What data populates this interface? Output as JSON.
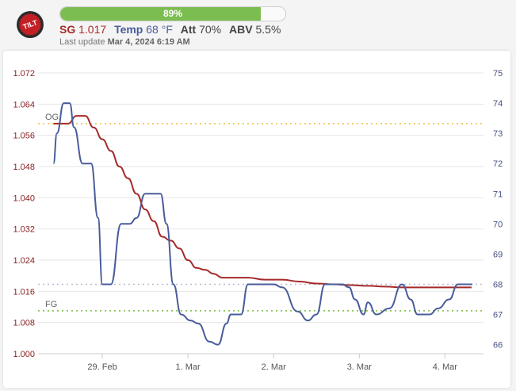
{
  "header": {
    "logo_icon": "tilt-hydrometer-logo-icon",
    "logo_text": "TILT",
    "battery": {
      "label": "89%",
      "fraction": 0.89,
      "color": "#7cbd52"
    },
    "stats": {
      "sg": {
        "label": "SG",
        "value": "1.017"
      },
      "temp": {
        "label": "Temp",
        "value": "68 °F"
      },
      "att": {
        "label": "Att",
        "value": "70%"
      },
      "abv": {
        "label": "ABV",
        "value": "5.5%"
      }
    },
    "last_update": {
      "prefix": "Last update",
      "value": "Mar 4, 2024 6:19 AM"
    }
  },
  "colors": {
    "sg": "#a52a2a",
    "temp": "#4a5c9b",
    "og_line": "#f0c040",
    "fg_line": "#7bbd3f",
    "temp_ref_line": "#b9bccd"
  },
  "chart_data": {
    "type": "line",
    "x_ticks": [
      {
        "label": "29. Feb",
        "day": 1.5
      },
      {
        "label": "1. Mar",
        "day": 2.5
      },
      {
        "label": "2. Mar",
        "day": 3.5
      },
      {
        "label": "3. Mar",
        "day": 4.5
      },
      {
        "label": "4. Mar",
        "day": 5.5
      }
    ],
    "y_left": {
      "min": 1.0,
      "max": 1.072,
      "ticks": [
        "1.000",
        "1.008",
        "1.016",
        "1.024",
        "1.032",
        "1.040",
        "1.048",
        "1.056",
        "1.064",
        "1.072"
      ]
    },
    "y_right": {
      "min": 65.7,
      "max": 75,
      "ticks": [
        "66",
        "67",
        "68",
        "69",
        "70",
        "71",
        "72",
        "73",
        "74",
        "75"
      ]
    },
    "reference_lines": [
      {
        "label": "OG",
        "value": 1.059,
        "axis": "left",
        "color": "#f0c040"
      },
      {
        "label": "FG",
        "value": 1.011,
        "axis": "left",
        "color": "#7bbd3f"
      },
      {
        "label": "",
        "value": 68.0,
        "axis": "right",
        "color": "#b9bccd"
      }
    ],
    "series": [
      {
        "name": "SG",
        "axis": "left",
        "color": "#a52a2a",
        "x": [
          0.93,
          1.0,
          1.1,
          1.2,
          1.3,
          1.4,
          1.5,
          1.6,
          1.7,
          1.8,
          1.9,
          2.0,
          2.1,
          2.2,
          2.3,
          2.4,
          2.5,
          2.6,
          2.7,
          2.8,
          2.9,
          3.0,
          3.2,
          3.4,
          3.5,
          3.6,
          3.8,
          4.0,
          4.2,
          4.4,
          4.6,
          4.8,
          5.0,
          5.2,
          5.4,
          5.6,
          5.81
        ],
        "y": [
          1.059,
          1.059,
          1.059,
          1.061,
          1.061,
          1.058,
          1.055,
          1.052,
          1.048,
          1.045,
          1.041,
          1.037,
          1.034,
          1.03,
          1.029,
          1.027,
          1.024,
          1.022,
          1.0215,
          1.0205,
          1.0195,
          1.0195,
          1.0195,
          1.019,
          1.019,
          1.019,
          1.0185,
          1.018,
          1.0178,
          1.0176,
          1.0174,
          1.0172,
          1.017,
          1.017,
          1.017,
          1.017,
          1.017
        ]
      },
      {
        "name": "Temp",
        "axis": "right",
        "color": "#4a5c9b",
        "x": [
          0.93,
          0.97,
          1.05,
          1.12,
          1.17,
          1.27,
          1.37,
          1.45,
          1.5,
          1.6,
          1.72,
          1.78,
          1.82,
          1.9,
          2.0,
          2.05,
          2.18,
          2.25,
          2.33,
          2.42,
          2.53,
          2.62,
          2.75,
          2.85,
          2.95,
          3.0,
          3.12,
          3.2,
          3.3,
          3.4,
          3.5,
          3.6,
          3.78,
          3.9,
          4.0,
          4.1,
          4.22,
          4.3,
          4.38,
          4.45,
          4.55,
          4.6,
          4.7,
          4.85,
          5.0,
          5.1,
          5.18,
          5.25,
          5.32,
          5.42,
          5.55,
          5.65,
          5.75,
          5.82
        ],
        "y": [
          72,
          73,
          74,
          74,
          73.2,
          72,
          72,
          70.2,
          68,
          68,
          70,
          70,
          70,
          70.2,
          71,
          71,
          71,
          70,
          68,
          67,
          66.8,
          66.7,
          66.1,
          66,
          66.7,
          67,
          67,
          68,
          68,
          68,
          68,
          67.9,
          67.1,
          66.8,
          67,
          68,
          68,
          68,
          67.9,
          67.5,
          67,
          67.4,
          67,
          67.2,
          68,
          67.5,
          67,
          67,
          67,
          67.2,
          67.5,
          68,
          68,
          68
        ]
      }
    ]
  }
}
